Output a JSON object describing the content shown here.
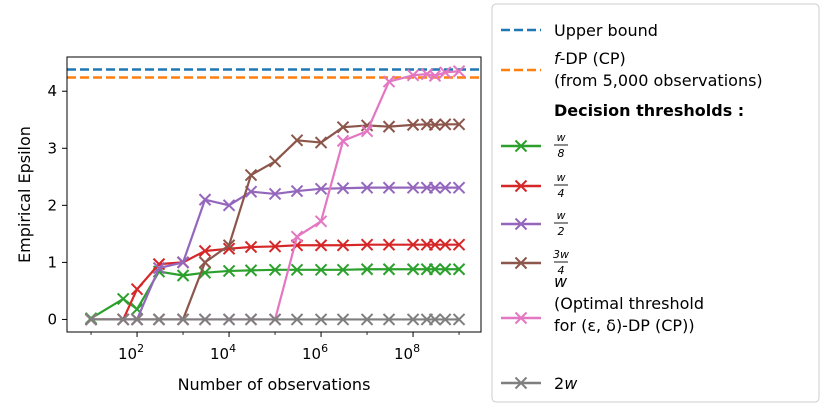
{
  "chart_data": {
    "type": "line",
    "xlabel": "Number of observations",
    "ylabel": "Empirical Epsilon",
    "x_scale": "log",
    "xlim": [
      3,
      3000000000
    ],
    "ylim": [
      -0.22,
      4.6
    ],
    "x_ticks": [
      {
        "value": 100,
        "base": "10",
        "exp": "2"
      },
      {
        "value": 10000,
        "base": "10",
        "exp": "4"
      },
      {
        "value": 1000000,
        "base": "10",
        "exp": "6"
      },
      {
        "value": 100000000,
        "base": "10",
        "exp": "8"
      }
    ],
    "y_ticks": [
      {
        "value": 0,
        "label": "0"
      },
      {
        "value": 1,
        "label": "1"
      },
      {
        "value": 2,
        "label": "2"
      },
      {
        "value": 3,
        "label": "3"
      },
      {
        "value": 4,
        "label": "4"
      }
    ],
    "hlines": [
      {
        "name": "Upper bound",
        "y": 4.38,
        "color": "#1f77b4"
      },
      {
        "name_parts": [
          "f",
          "-DP (CP)"
        ],
        "name_line2": "(from 5,000 observations)",
        "y": 4.24,
        "color": "#ff7f0e"
      }
    ],
    "legend_heading": "Decision thresholds",
    "legend_heading_colon": ":",
    "series": [
      {
        "id": "w8",
        "color": "#2ca02c",
        "label": {
          "type": "frac",
          "num": "w",
          "den": "8"
        },
        "x": [
          10,
          50,
          100,
          300,
          1000,
          3000,
          10000,
          30000,
          100000,
          300000,
          1000000,
          3000000,
          10000000,
          30000000,
          100000000,
          200000000,
          300000000,
          500000000,
          1000000000
        ],
        "y": [
          0.02,
          0.36,
          0.18,
          0.84,
          0.77,
          0.82,
          0.85,
          0.86,
          0.87,
          0.87,
          0.87,
          0.87,
          0.88,
          0.88,
          0.88,
          0.88,
          0.88,
          0.88,
          0.88
        ]
      },
      {
        "id": "w4",
        "color": "#d62728",
        "label": {
          "type": "frac",
          "num": "w",
          "den": "4"
        },
        "x": [
          10,
          50,
          100,
          300,
          1000,
          3000,
          10000,
          30000,
          100000,
          300000,
          1000000,
          3000000,
          10000000,
          30000000,
          100000000,
          200000000,
          300000000,
          500000000,
          1000000000
        ],
        "y": [
          0.0,
          0.0,
          0.53,
          0.97,
          1.0,
          1.2,
          1.24,
          1.27,
          1.28,
          1.3,
          1.3,
          1.3,
          1.31,
          1.31,
          1.31,
          1.31,
          1.31,
          1.31,
          1.31
        ]
      },
      {
        "id": "w2",
        "color": "#9467bd",
        "label": {
          "type": "frac",
          "num": "w",
          "den": "2"
        },
        "x": [
          10,
          50,
          100,
          300,
          1000,
          3000,
          10000,
          30000,
          100000,
          300000,
          1000000,
          3000000,
          10000000,
          30000000,
          100000000,
          200000000,
          300000000,
          500000000,
          1000000000
        ],
        "y": [
          0.0,
          0.0,
          0.0,
          0.9,
          1.0,
          2.1,
          2.0,
          2.24,
          2.2,
          2.25,
          2.29,
          2.3,
          2.31,
          2.31,
          2.31,
          2.31,
          2.31,
          2.31,
          2.31
        ]
      },
      {
        "id": "w34",
        "color": "#8c564b",
        "label": {
          "type": "frac",
          "num": "3w",
          "den": "4"
        },
        "x": [
          10,
          50,
          100,
          300,
          1000,
          3000,
          10000,
          30000,
          100000,
          300000,
          1000000,
          3000000,
          10000000,
          30000000,
          100000000,
          200000000,
          300000000,
          500000000,
          1000000000
        ],
        "y": [
          0.0,
          0.0,
          0.0,
          0.0,
          0.0,
          1.0,
          1.3,
          2.53,
          2.77,
          3.14,
          3.1,
          3.37,
          3.4,
          3.38,
          3.41,
          3.42,
          3.41,
          3.42,
          3.42
        ]
      },
      {
        "id": "w",
        "color": "#e377c2",
        "label": {
          "type": "text",
          "lines": [
            "w",
            "(Optimal threshold",
            "for (ε, δ)-DP (CP))"
          ]
        },
        "x": [
          10,
          50,
          100,
          300,
          1000,
          3000,
          10000,
          30000,
          100000,
          300000,
          1000000,
          3000000,
          10000000,
          30000000,
          100000000,
          200000000,
          300000000,
          500000000,
          1000000000
        ],
        "y": [
          0.0,
          0.0,
          0.0,
          0.0,
          0.0,
          0.0,
          0.0,
          0.0,
          0.0,
          1.45,
          1.72,
          3.13,
          3.3,
          4.17,
          4.28,
          4.3,
          4.27,
          4.33,
          4.35
        ]
      },
      {
        "id": "w2x",
        "color": "#7f7f7f",
        "label": {
          "type": "text",
          "lines": [
            "2w"
          ]
        },
        "x": [
          10,
          50,
          100,
          300,
          1000,
          3000,
          10000,
          30000,
          100000,
          300000,
          1000000,
          3000000,
          10000000,
          30000000,
          100000000,
          200000000,
          300000000,
          500000000,
          1000000000
        ],
        "y": [
          0,
          0,
          0,
          0,
          0,
          0,
          0,
          0,
          0,
          0,
          0,
          0,
          0,
          0,
          0,
          0,
          0,
          0,
          0
        ]
      }
    ],
    "grid": false,
    "legend_position": "right, outside plot"
  }
}
